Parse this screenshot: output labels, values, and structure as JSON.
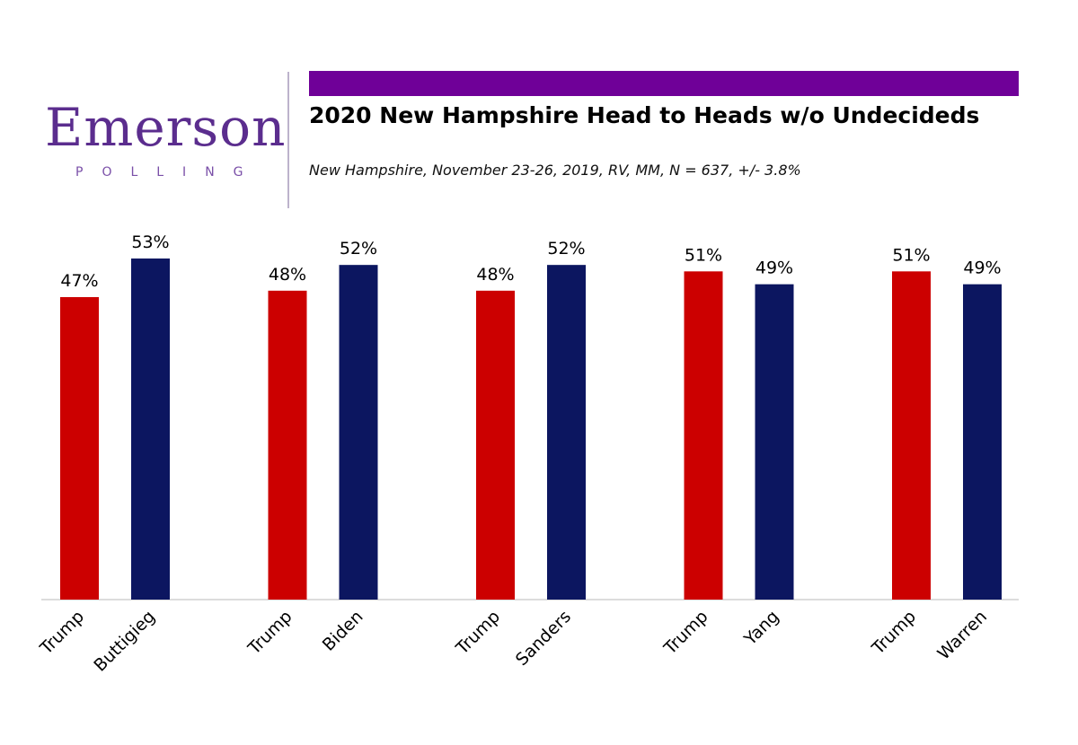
{
  "branding": {
    "logo_word": "Emerson",
    "logo_sub": "POLLING"
  },
  "colors": {
    "accent": "#6f0098",
    "republican": "#cc0000",
    "democrat": "#0c1660"
  },
  "chart_data": {
    "type": "bar",
    "title": "2020 New Hampshire Head to Heads w/o Undecideds",
    "subtitle": "New Hampshire, November 23-26, 2019, RV, MM, N = 637, +/- 3.8%",
    "groups": [
      {
        "bars": [
          {
            "label": "Trump",
            "value": 47,
            "value_label": "47%",
            "party": "republican"
          },
          {
            "label": "Buttigieg",
            "value": 53,
            "value_label": "53%",
            "party": "democrat"
          }
        ]
      },
      {
        "bars": [
          {
            "label": "Trump",
            "value": 48,
            "value_label": "48%",
            "party": "republican"
          },
          {
            "label": "Biden",
            "value": 52,
            "value_label": "52%",
            "party": "democrat"
          }
        ]
      },
      {
        "bars": [
          {
            "label": "Trump",
            "value": 48,
            "value_label": "48%",
            "party": "republican"
          },
          {
            "label": "Sanders",
            "value": 52,
            "value_label": "52%",
            "party": "democrat"
          }
        ]
      },
      {
        "bars": [
          {
            "label": "Trump",
            "value": 51,
            "value_label": "51%",
            "party": "republican"
          },
          {
            "label": "Yang",
            "value": 49,
            "value_label": "49%",
            "party": "democrat"
          }
        ]
      },
      {
        "bars": [
          {
            "label": "Trump",
            "value": 51,
            "value_label": "51%",
            "party": "republican"
          },
          {
            "label": "Warren",
            "value": 49,
            "value_label": "49%",
            "party": "democrat"
          }
        ]
      }
    ],
    "ylim": [
      0,
      53
    ],
    "grid": false,
    "legend": "none"
  }
}
